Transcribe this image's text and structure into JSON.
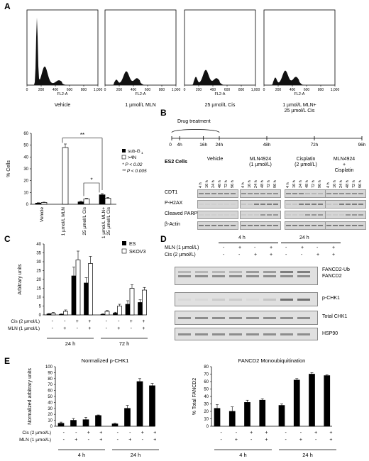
{
  "panels": {
    "A": "A",
    "B": "B",
    "C": "C",
    "D": "D",
    "E": "E"
  },
  "panelA": {
    "histograms": [
      {
        "caption": "Vehicle",
        "xlabel": "FL2-A",
        "ticks": [
          "0",
          "200",
          "400",
          "600",
          "800",
          "1,000"
        ]
      },
      {
        "caption": "1 µmol/L MLN",
        "xlabel": "FL2-A",
        "ticks": [
          "0",
          "200",
          "400",
          "600",
          "800",
          "1,000"
        ]
      },
      {
        "caption": "25 µmol/L Cis",
        "xlabel": "FL2-A",
        "ticks": [
          "0",
          "200",
          "400",
          "600",
          "800",
          "1,000"
        ]
      },
      {
        "caption": "1 µmol/L MLN+\n25 µmol/L Cis",
        "xlabel": "FL2-A",
        "ticks": [
          "0",
          "200",
          "400",
          "600",
          "800",
          "1,000"
        ]
      }
    ]
  },
  "panelB": {
    "timeline_title": "Drug treatment",
    "timeline_ticks": [
      "0",
      "4h",
      "16h",
      "24h",
      "48h",
      "72h",
      "96h"
    ],
    "cell_line": "ES2 Cells",
    "groups": [
      "Vehicle",
      "MLN4924\n(1 µmol/L)",
      "Cisplatin\n(2 µmol/L)",
      "MLN4924\n+\nCisplatin"
    ],
    "lane_labels": [
      "4 h",
      "16 h",
      "24 h",
      "48 h",
      "72 h",
      "96 h"
    ],
    "rows": [
      "CDT1",
      "P-H2AX",
      "Cleaved PARP",
      "β-Actin"
    ]
  },
  "panelD": {
    "time_headers": [
      "4 h",
      "24 h"
    ],
    "treat_rows": [
      {
        "label": "MLN (1 µmol/L)",
        "signs": [
          "-",
          "+",
          "-",
          "+",
          "-",
          "+",
          "-",
          "+"
        ]
      },
      {
        "label": "Cis (2 µmol/L)",
        "signs": [
          "-",
          "-",
          "+",
          "+",
          "-",
          "-",
          "+",
          "+"
        ]
      }
    ],
    "blots": [
      "FANCD2-Ub\nFANCD2",
      "p-CHK1",
      "Total CHK1",
      "HSP90"
    ]
  },
  "chart_data": [
    {
      "type": "bar",
      "id": "A-bar",
      "categories": [
        "Vehicle",
        "1 µmol/L MLN",
        "25 µmol/L Cis",
        "1 µmol/L MLN+ 25 µmol/L Cis"
      ],
      "series": [
        {
          "name": "sub-G1",
          "values": [
            1,
            0,
            2,
            8
          ]
        },
        {
          "name": ">4N",
          "values": [
            1.5,
            48,
            4.5,
            5
          ]
        }
      ],
      "errors": [
        [
          0.3,
          0,
          0.5,
          1
        ],
        [
          0.3,
          3,
          0.5,
          0.8
        ]
      ],
      "ylabel": "% Cells",
      "ylim": [
        0,
        60
      ],
      "yticks": [
        "0",
        "10",
        "20",
        "30",
        "40",
        "50",
        "60"
      ],
      "legend": {
        "items": [
          "sub-G",
          "1",
          ">4N"
        ],
        "notes": [
          "*   P < 0.02",
          "**  P < 0.005"
        ]
      },
      "annotations": [
        "**",
        "*"
      ]
    },
    {
      "type": "bar",
      "id": "C",
      "groups": [
        "24 h",
        "72 h"
      ],
      "rows": [
        {
          "label": "Cis (2 µmol/L)",
          "signs": [
            "-",
            "-",
            "+",
            "+",
            "-",
            "-",
            "+",
            "+"
          ]
        },
        {
          "label": "MLN (1 µmol/L)",
          "signs": [
            "-",
            "+",
            "-",
            "+",
            "-",
            "+",
            "-",
            "+"
          ]
        }
      ],
      "series": [
        {
          "name": "ES",
          "values": [
            0.5,
            0.3,
            22,
            18,
            0.3,
            1,
            6,
            7
          ]
        },
        {
          "name": "SKOV3",
          "values": [
            1,
            2,
            31,
            29,
            2,
            5,
            15,
            14
          ]
        }
      ],
      "errors": [
        [
          0.3,
          0.3,
          5,
          3,
          0.3,
          0.5,
          2,
          1.5
        ],
        [
          0.4,
          0.8,
          5,
          4,
          0.5,
          1,
          2,
          1.5
        ]
      ],
      "ylabel": "Arbitrary units",
      "ylim": [
        0,
        40
      ],
      "yticks": [
        "0",
        "5",
        "10",
        "15",
        "20",
        "25",
        "30",
        "35",
        "40"
      ]
    },
    {
      "type": "bar",
      "id": "E-left",
      "title": "Normalized p-CHK1",
      "groups": [
        "4 h",
        "24 h"
      ],
      "rows": [
        {
          "label": "Cis (2 µmol/L)",
          "signs": [
            "-",
            "-",
            "+",
            "+",
            "-",
            "-",
            "+",
            "+"
          ]
        },
        {
          "label": "MLN (1 µmol/L)",
          "signs": [
            "-",
            "+",
            "-",
            "+",
            "-",
            "+",
            "-",
            "+"
          ]
        }
      ],
      "values": [
        5,
        10,
        11,
        18,
        4,
        30,
        75,
        68
      ],
      "errors": [
        2,
        3,
        4,
        1,
        1,
        5,
        5,
        4
      ],
      "ylabel": "Normalized arbitrary units",
      "ylim": [
        0,
        100
      ],
      "yticks": [
        "0",
        "10",
        "20",
        "30",
        "40",
        "50",
        "60",
        "70",
        "80",
        "90",
        "100"
      ]
    },
    {
      "type": "bar",
      "id": "E-right",
      "title": "FANCD2 Monoubiquitination",
      "groups": [
        "4 h",
        "24 h"
      ],
      "signs_rows": [
        [
          "-",
          "-",
          "+",
          "+",
          "-",
          "-",
          "+",
          "+"
        ],
        [
          "-",
          "+",
          "-",
          "+",
          "-",
          "+",
          "-",
          "+"
        ]
      ],
      "values": [
        24,
        20,
        32,
        35,
        28,
        62,
        70,
        68
      ],
      "errors": [
        5,
        6,
        3,
        2,
        2,
        2,
        2,
        1
      ],
      "ylabel": "% Total FANCD2",
      "ylim": [
        0,
        80
      ],
      "yticks": [
        "0",
        "10",
        "20",
        "30",
        "40",
        "50",
        "60",
        "70",
        "80"
      ]
    }
  ]
}
